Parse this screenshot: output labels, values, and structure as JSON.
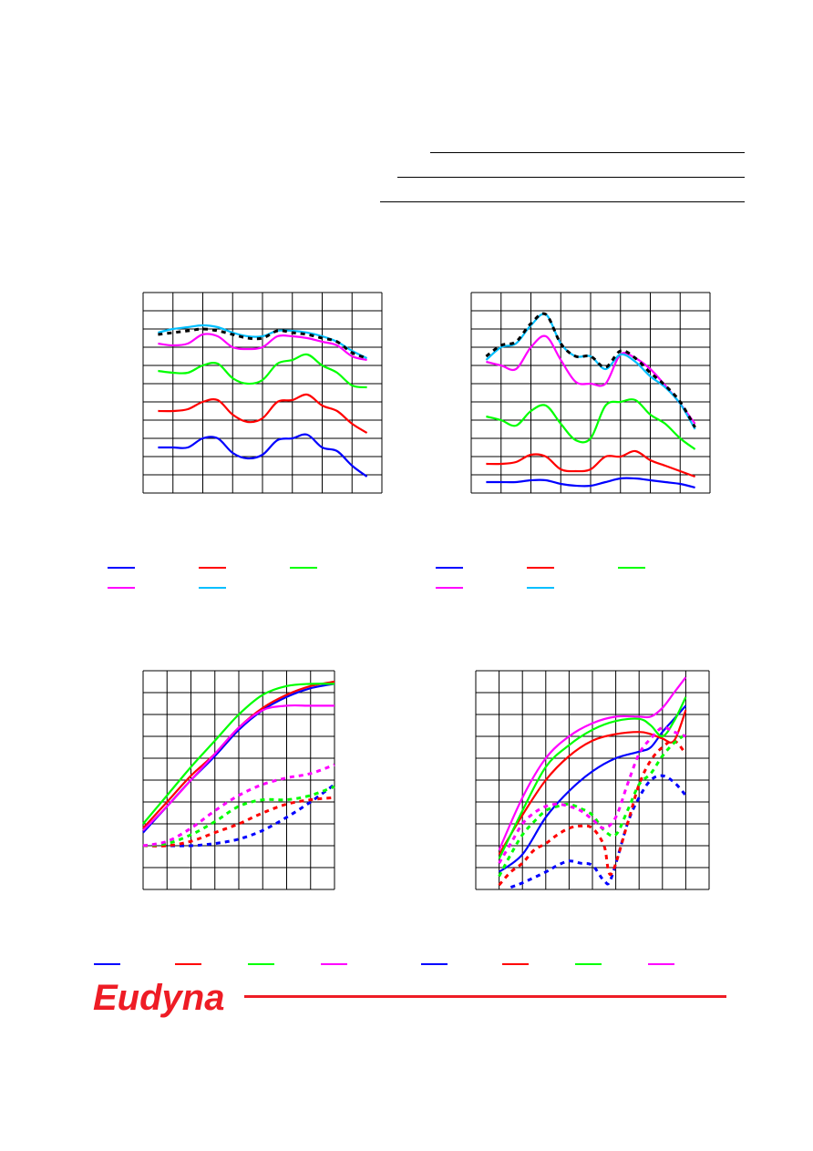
{
  "brand": {
    "name": "Eudyna",
    "color": "#ee1c25"
  },
  "colors": {
    "blue": "#0000ff",
    "red": "#ff0000",
    "green": "#00ff00",
    "magenta": "#ff00ff",
    "cyan": "#00bfff",
    "black": "#000000"
  },
  "legends": {
    "top_left": [
      "blue",
      "red",
      "green",
      "magenta",
      "cyan"
    ],
    "top_right": [
      "blue",
      "red",
      "green",
      "magenta",
      "cyan"
    ],
    "bottom_left": [
      "blue",
      "red",
      "green",
      "magenta"
    ],
    "bottom_right": [
      "blue",
      "red",
      "green",
      "magenta"
    ]
  },
  "chart_data": [
    {
      "type": "line",
      "grid": true,
      "xlim": [
        0,
        8
      ],
      "ylim": [
        0,
        11
      ],
      "series": [
        {
          "color": "blue",
          "dashed": false,
          "x": [
            0.5,
            1,
            1.5,
            2,
            2.5,
            3,
            3.5,
            4,
            4.5,
            5,
            5.5,
            6,
            6.5,
            7,
            7.5
          ],
          "y": [
            2.5,
            2.5,
            2.5,
            3.0,
            3.0,
            2.2,
            1.9,
            2.1,
            2.9,
            3.0,
            3.2,
            2.5,
            2.3,
            1.5,
            0.9
          ]
        },
        {
          "color": "red",
          "dashed": false,
          "x": [
            0.5,
            1,
            1.5,
            2,
            2.5,
            3,
            3.5,
            4,
            4.5,
            5,
            5.5,
            6,
            6.5,
            7,
            7.5
          ],
          "y": [
            4.5,
            4.5,
            4.6,
            5.0,
            5.1,
            4.3,
            3.9,
            4.1,
            5.0,
            5.1,
            5.4,
            4.8,
            4.5,
            3.8,
            3.3
          ]
        },
        {
          "color": "green",
          "dashed": false,
          "x": [
            0.5,
            1,
            1.5,
            2,
            2.5,
            3,
            3.5,
            4,
            4.5,
            5,
            5.5,
            6,
            6.5,
            7,
            7.5
          ],
          "y": [
            6.7,
            6.6,
            6.6,
            7.0,
            7.1,
            6.3,
            6.0,
            6.2,
            7.1,
            7.3,
            7.6,
            7.0,
            6.6,
            5.9,
            5.8
          ]
        },
        {
          "color": "magenta",
          "dashed": false,
          "x": [
            0.5,
            1,
            1.5,
            2,
            2.5,
            3,
            3.5,
            4,
            4.5,
            5,
            5.5,
            6,
            6.5,
            7,
            7.5
          ],
          "y": [
            8.2,
            8.1,
            8.2,
            8.7,
            8.6,
            8.0,
            7.9,
            8.0,
            8.6,
            8.6,
            8.5,
            8.3,
            8.1,
            7.5,
            7.3
          ]
        },
        {
          "color": "cyan",
          "dashed": false,
          "x": [
            0.5,
            1,
            1.5,
            2,
            2.5,
            3,
            3.5,
            4,
            4.5,
            5,
            5.5,
            6,
            6.5,
            7,
            7.5
          ],
          "y": [
            8.8,
            9.0,
            9.1,
            9.2,
            9.1,
            8.8,
            8.6,
            8.6,
            8.9,
            8.9,
            8.8,
            8.6,
            8.3,
            7.8,
            7.4
          ]
        },
        {
          "color": "black",
          "dashed": true,
          "x": [
            0.5,
            1,
            1.5,
            2,
            2.5,
            3,
            3.5,
            4,
            4.5,
            5,
            5.5,
            6,
            6.5,
            7,
            7.5
          ],
          "y": [
            8.7,
            8.8,
            8.9,
            9.0,
            8.9,
            8.7,
            8.5,
            8.5,
            8.9,
            8.8,
            8.7,
            8.5,
            8.3,
            7.7,
            7.4
          ]
        }
      ]
    },
    {
      "type": "line",
      "grid": true,
      "xlim": [
        0,
        8
      ],
      "ylim": [
        0,
        11
      ],
      "series": [
        {
          "color": "blue",
          "dashed": false,
          "x": [
            0.5,
            1,
            1.5,
            2,
            2.5,
            3,
            3.5,
            4,
            4.5,
            5,
            5.5,
            6,
            6.5,
            7,
            7.5
          ],
          "y": [
            0.6,
            0.6,
            0.6,
            0.7,
            0.7,
            0.5,
            0.4,
            0.4,
            0.6,
            0.8,
            0.8,
            0.7,
            0.6,
            0.5,
            0.3
          ]
        },
        {
          "color": "red",
          "dashed": false,
          "x": [
            0.5,
            1,
            1.5,
            2,
            2.5,
            3,
            3.5,
            4,
            4.5,
            5,
            5.5,
            6,
            6.5,
            7,
            7.5
          ],
          "y": [
            1.6,
            1.6,
            1.7,
            2.1,
            2.0,
            1.3,
            1.2,
            1.3,
            2.0,
            2.0,
            2.3,
            1.8,
            1.5,
            1.2,
            0.9
          ]
        },
        {
          "color": "green",
          "dashed": false,
          "x": [
            0.5,
            1,
            1.5,
            2,
            2.5,
            3,
            3.5,
            4,
            4.5,
            5,
            5.5,
            6,
            6.5,
            7,
            7.5
          ],
          "y": [
            4.2,
            4.0,
            3.7,
            4.5,
            4.8,
            3.8,
            2.9,
            3.0,
            4.8,
            5.0,
            5.1,
            4.3,
            3.8,
            3.0,
            2.4
          ]
        },
        {
          "color": "magenta",
          "dashed": false,
          "x": [
            0.5,
            1,
            1.5,
            2,
            2.5,
            3,
            3.5,
            4,
            4.5,
            5,
            5.5,
            6,
            6.5,
            7,
            7.5
          ],
          "y": [
            7.2,
            7.0,
            6.8,
            8.0,
            8.6,
            7.3,
            6.1,
            6.0,
            6.0,
            7.6,
            7.4,
            6.8,
            5.9,
            4.9,
            3.8
          ]
        },
        {
          "color": "cyan",
          "dashed": false,
          "x": [
            0.5,
            1,
            1.5,
            2,
            2.5,
            3,
            3.5,
            4,
            4.5,
            5,
            5.5,
            6,
            6.5,
            7,
            7.5
          ],
          "y": [
            7.3,
            8.0,
            8.2,
            9.2,
            9.8,
            8.2,
            7.5,
            7.5,
            6.8,
            7.6,
            7.2,
            6.4,
            5.8,
            4.9,
            3.5
          ]
        },
        {
          "color": "black",
          "dashed": true,
          "x": [
            0.5,
            1,
            1.5,
            2,
            2.5,
            3,
            3.5,
            4,
            4.5,
            5,
            5.5,
            6,
            6.5,
            7,
            7.5
          ],
          "y": [
            7.5,
            8.1,
            8.3,
            9.3,
            9.8,
            8.2,
            7.5,
            7.5,
            6.9,
            7.8,
            7.4,
            6.6,
            5.9,
            5.0,
            3.6
          ]
        }
      ]
    },
    {
      "type": "line",
      "grid": true,
      "xlim": [
        0,
        8
      ],
      "ylim": [
        0,
        10
      ],
      "series": [
        {
          "color": "blue",
          "dashed": false,
          "x": [
            0,
            1,
            2,
            3,
            4,
            5,
            6,
            7,
            8
          ],
          "y": [
            2.6,
            3.8,
            5.0,
            6.1,
            7.3,
            8.2,
            8.8,
            9.2,
            9.4
          ]
        },
        {
          "color": "red",
          "dashed": false,
          "x": [
            0,
            1,
            2,
            3,
            4,
            5,
            6,
            7,
            8
          ],
          "y": [
            2.8,
            4.0,
            5.2,
            6.2,
            7.4,
            8.3,
            8.9,
            9.3,
            9.5
          ]
        },
        {
          "color": "green",
          "dashed": false,
          "x": [
            0,
            1,
            2,
            3,
            4,
            5,
            6,
            7,
            8
          ],
          "y": [
            3.0,
            4.3,
            5.6,
            6.8,
            8.0,
            8.9,
            9.3,
            9.4,
            9.4
          ]
        },
        {
          "color": "magenta",
          "dashed": false,
          "x": [
            0,
            1,
            2,
            3,
            4,
            5,
            6,
            7,
            8
          ],
          "y": [
            2.7,
            3.8,
            5.0,
            6.2,
            7.4,
            8.2,
            8.4,
            8.4,
            8.4
          ]
        },
        {
          "color": "blue",
          "dashed": true,
          "x": [
            0,
            1,
            2,
            3,
            4,
            5,
            6,
            7,
            8
          ],
          "y": [
            2.0,
            2.0,
            2.0,
            2.1,
            2.3,
            2.7,
            3.3,
            4.0,
            4.8
          ]
        },
        {
          "color": "red",
          "dashed": true,
          "x": [
            0,
            1,
            2,
            3,
            4,
            5,
            6,
            7,
            8
          ],
          "y": [
            2.0,
            2.0,
            2.2,
            2.6,
            3.0,
            3.5,
            3.9,
            4.1,
            4.2
          ]
        },
        {
          "color": "green",
          "dashed": true,
          "x": [
            0,
            1,
            2,
            3,
            4,
            5,
            6,
            7,
            8
          ],
          "y": [
            2.0,
            2.1,
            2.5,
            3.1,
            3.8,
            4.1,
            4.1,
            4.3,
            4.7
          ]
        },
        {
          "color": "magenta",
          "dashed": true,
          "x": [
            0,
            1,
            2,
            3,
            4,
            5,
            6,
            7,
            8
          ],
          "y": [
            2.0,
            2.2,
            2.8,
            3.6,
            4.3,
            4.8,
            5.1,
            5.3,
            5.7
          ]
        }
      ]
    },
    {
      "type": "line",
      "grid": true,
      "xlim": [
        0,
        10
      ],
      "ylim": [
        0,
        10
      ],
      "series": [
        {
          "color": "blue",
          "dashed": false,
          "x": [
            1,
            2,
            3,
            4,
            5,
            6,
            7,
            7.5,
            8,
            8.5,
            9
          ],
          "y": [
            0.8,
            1.6,
            3.3,
            4.5,
            5.4,
            6.0,
            6.3,
            6.5,
            7.2,
            7.8,
            8.4
          ]
        },
        {
          "color": "red",
          "dashed": false,
          "x": [
            1,
            2,
            3,
            4,
            5,
            6,
            7,
            7.5,
            8,
            8.5,
            9
          ],
          "y": [
            1.6,
            3.4,
            5.0,
            6.1,
            6.8,
            7.1,
            7.2,
            7.1,
            6.9,
            6.8,
            8.2
          ]
        },
        {
          "color": "green",
          "dashed": false,
          "x": [
            1,
            2,
            3,
            4,
            5,
            6,
            7,
            7.5,
            8,
            8.5,
            9
          ],
          "y": [
            1.4,
            3.6,
            5.6,
            6.6,
            7.3,
            7.7,
            7.8,
            7.5,
            7.0,
            7.7,
            8.8
          ]
        },
        {
          "color": "magenta",
          "dashed": false,
          "x": [
            1,
            2,
            3,
            4,
            5,
            6,
            7,
            7.5,
            8,
            8.5,
            9
          ],
          "y": [
            1.8,
            4.2,
            6.0,
            7.0,
            7.6,
            7.9,
            7.9,
            7.9,
            8.3,
            9.0,
            9.7
          ]
        },
        {
          "color": "blue",
          "dashed": true,
          "x": [
            1.5,
            2,
            3,
            3.5,
            4,
            4.5,
            5,
            5.5,
            5.8,
            6.5,
            7,
            7.5,
            8,
            8.5,
            9
          ],
          "y": [
            0.1,
            0.3,
            0.8,
            1.1,
            1.3,
            1.2,
            1.1,
            0.4,
            0.5,
            3.0,
            4.2,
            5.0,
            5.2,
            4.9,
            4.3
          ]
        },
        {
          "color": "red",
          "dashed": true,
          "x": [
            1,
            1.5,
            2,
            2.5,
            3,
            3.5,
            4,
            4.5,
            5,
            5.5,
            5.8,
            6.5,
            7,
            7.5,
            8,
            8.5,
            9
          ],
          "y": [
            0.2,
            0.8,
            1.2,
            1.8,
            2.1,
            2.5,
            2.8,
            2.9,
            2.8,
            2.0,
            0.7,
            3.0,
            4.8,
            5.9,
            6.5,
            6.8,
            6.2
          ]
        },
        {
          "color": "green",
          "dashed": true,
          "x": [
            1,
            1.5,
            2,
            2.5,
            3,
            3.5,
            4,
            4.5,
            5,
            5.5,
            6,
            6.5,
            7,
            7.5,
            8,
            8.5,
            9
          ],
          "y": [
            0.6,
            1.6,
            2.5,
            3.1,
            3.6,
            3.8,
            3.9,
            3.7,
            3.4,
            2.7,
            2.5,
            3.6,
            4.8,
            5.3,
            6.1,
            6.7,
            7.1
          ]
        },
        {
          "color": "magenta",
          "dashed": true,
          "x": [
            1,
            1.5,
            2,
            2.5,
            3,
            3.5,
            4,
            4.5,
            5,
            5.5,
            6,
            6.5,
            7,
            7.5,
            8,
            8.5,
            9
          ],
          "y": [
            1.2,
            2.1,
            3.0,
            3.5,
            3.8,
            3.9,
            3.8,
            3.6,
            3.2,
            2.8,
            3.3,
            4.8,
            6.2,
            6.9,
            7.4,
            7.2,
            7.0
          ]
        }
      ]
    }
  ]
}
